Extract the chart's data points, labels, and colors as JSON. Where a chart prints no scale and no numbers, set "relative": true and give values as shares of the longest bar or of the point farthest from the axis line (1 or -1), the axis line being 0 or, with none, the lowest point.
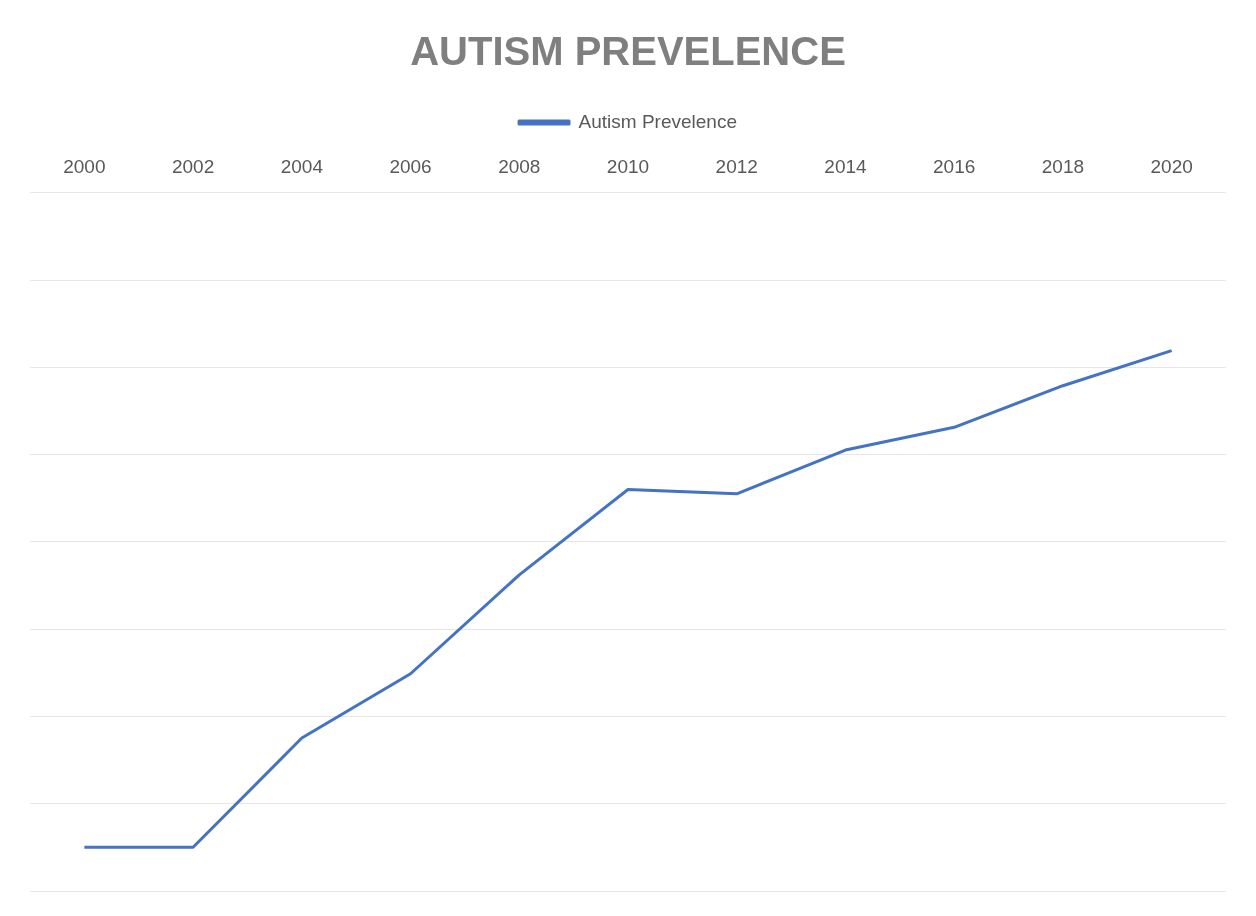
{
  "chart_data": {
    "type": "line",
    "title": "AUTISM PREVELENCE",
    "categories": [
      "2000",
      "2002",
      "2004",
      "2006",
      "2008",
      "2010",
      "2012",
      "2014",
      "2016",
      "2018",
      "2020"
    ],
    "series": [
      {
        "name": "Autism Prevelence",
        "color": "#4472c4",
        "values": [
          0.081,
          0.081,
          0.283,
          0.402,
          0.585,
          0.743,
          0.735,
          0.816,
          0.858,
          0.935,
          1
        ]
      }
    ],
    "relative": true,
    "grid": "y",
    "legend": "top",
    "marker": "none",
    "line_style": "solid"
  }
}
